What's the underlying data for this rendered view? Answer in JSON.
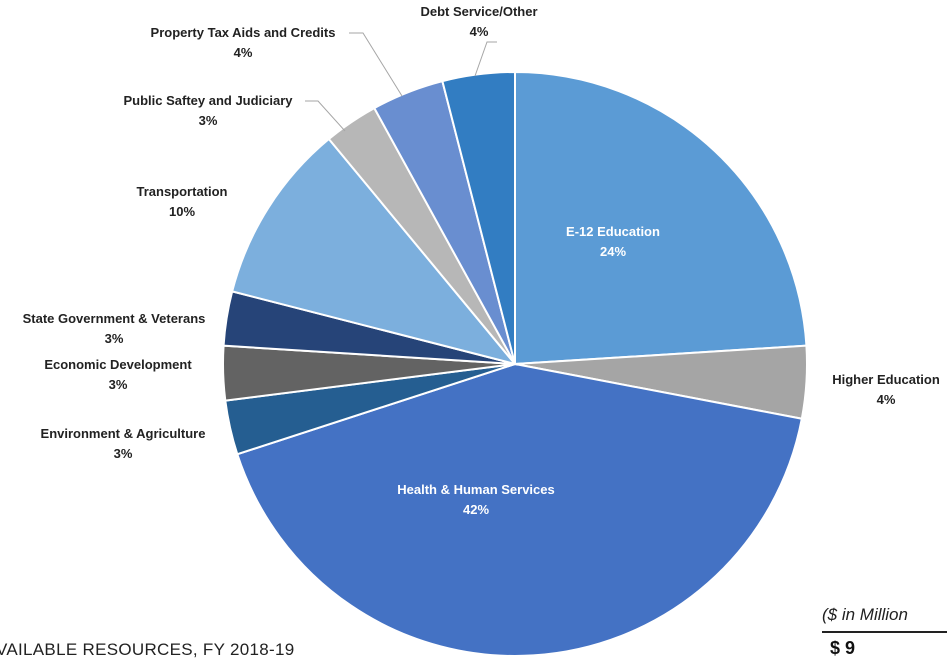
{
  "chart_data": {
    "type": "pie",
    "start_angle_deg": 0,
    "direction": "clockwise",
    "slices": [
      {
        "label": "E-12 Education",
        "value": 24,
        "pct_label": "24%",
        "color": "#5b9bd5"
      },
      {
        "label": "Higher Education",
        "value": 4,
        "pct_label": "4%",
        "color": "#a5a5a5"
      },
      {
        "label": "Health & Human Services",
        "value": 42,
        "pct_label": "42%",
        "color": "#4472c4"
      },
      {
        "label": "Environment & Agriculture",
        "value": 3,
        "pct_label": "3%",
        "color": "#255e91"
      },
      {
        "label": "Economic Development",
        "value": 3,
        "pct_label": "3%",
        "color": "#636363"
      },
      {
        "label": "State Government & Veterans",
        "value": 3,
        "pct_label": "3%",
        "color": "#264478"
      },
      {
        "label": "Transportation",
        "value": 10,
        "pct_label": "10%",
        "color": "#7cafdd"
      },
      {
        "label": "Public Saftey and Judiciary",
        "value": 3,
        "pct_label": "3%",
        "color": "#b7b7b7"
      },
      {
        "label": "Property Tax Aids and Credits",
        "value": 4,
        "pct_label": "4%",
        "color": "#698ed0"
      },
      {
        "label": "Debt Service/Other",
        "value": 4,
        "pct_label": "4%",
        "color": "#327dc2"
      }
    ]
  },
  "footer": {
    "left_text": "VAILABLE RESOURCES, FY 2018-19",
    "right_note": "($ in Million",
    "right_value": "$        9"
  }
}
